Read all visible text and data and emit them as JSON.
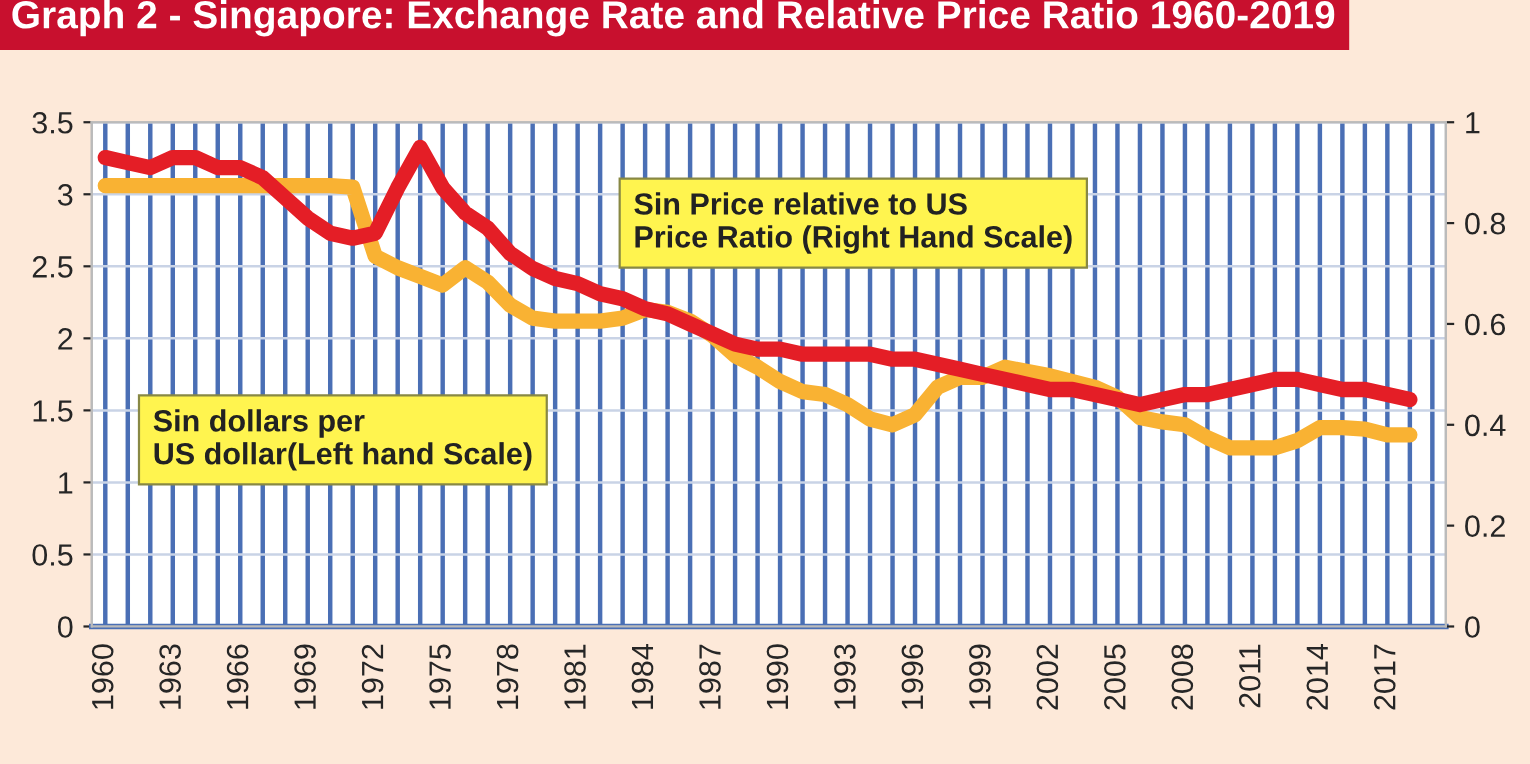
{
  "chart_data": {
    "type": "line",
    "title": "Graph 2 - Singapore: Exchange Rate and Relative Price Ratio 1960-2019",
    "categories": [
      "1960",
      null,
      null,
      "1963",
      null,
      null,
      "1966",
      null,
      null,
      "1969",
      null,
      null,
      "1972",
      null,
      null,
      "1975",
      null,
      null,
      "1978",
      null,
      null,
      "1981",
      null,
      null,
      "1984",
      null,
      null,
      "1987",
      null,
      null,
      "1990",
      null,
      null,
      "1993",
      null,
      null,
      "1996",
      null,
      null,
      "1999",
      null,
      null,
      "2002",
      null,
      null,
      "2005",
      null,
      null,
      "2008",
      null,
      null,
      "2011",
      null,
      null,
      "2014",
      null,
      null,
      "2017",
      null,
      null
    ],
    "series": [
      {
        "name": "Sin dollars per\nUS dollar(Left hand Scale)",
        "color": "#f9b233",
        "axis": "y",
        "values": [
          3.06,
          3.06,
          3.06,
          3.06,
          3.06,
          3.06,
          3.06,
          3.06,
          3.06,
          3.06,
          3.06,
          3.05,
          2.57,
          2.49,
          2.43,
          2.37,
          2.49,
          2.39,
          2.23,
          2.14,
          2.12,
          2.12,
          2.12,
          2.14,
          2.2,
          2.18,
          2.12,
          2.02,
          1.88,
          1.8,
          1.7,
          1.63,
          1.61,
          1.54,
          1.44,
          1.4,
          1.47,
          1.66,
          1.73,
          1.73,
          1.8,
          1.77,
          1.74,
          1.7,
          1.66,
          1.59,
          1.45,
          1.42,
          1.4,
          1.31,
          1.24,
          1.24,
          1.24,
          1.29,
          1.38,
          1.38,
          1.37,
          1.33,
          1.33,
          null
        ]
      },
      {
        "name": "Sin Price relative to US\nPrice Ratio (Right Hand Scale)",
        "color": "#e41e26",
        "axis": "y2",
        "values": [
          0.93,
          0.92,
          0.91,
          0.93,
          0.93,
          0.91,
          0.91,
          0.89,
          0.85,
          0.81,
          0.78,
          0.77,
          0.78,
          0.87,
          0.95,
          0.87,
          0.82,
          0.79,
          0.74,
          0.71,
          0.69,
          0.68,
          0.66,
          0.65,
          0.63,
          0.62,
          0.6,
          0.58,
          0.56,
          0.55,
          0.55,
          0.54,
          0.54,
          0.54,
          0.54,
          0.53,
          0.53,
          0.52,
          0.51,
          0.5,
          0.49,
          0.48,
          0.47,
          0.47,
          0.46,
          0.45,
          0.44,
          0.45,
          0.46,
          0.46,
          0.47,
          0.48,
          0.49,
          0.49,
          0.48,
          0.47,
          0.47,
          0.46,
          0.45,
          null
        ]
      }
    ],
    "ylim": [
      0,
      3.5
    ],
    "yticks": [
      0,
      0.5,
      1,
      1.5,
      2,
      2.5,
      3,
      3.5
    ],
    "y2lim": [
      0,
      1
    ],
    "y2ticks": [
      0,
      0.2,
      0.4,
      0.6,
      0.8,
      1
    ],
    "grid": true,
    "legend": false,
    "marker": "none",
    "line_style": "solid"
  }
}
